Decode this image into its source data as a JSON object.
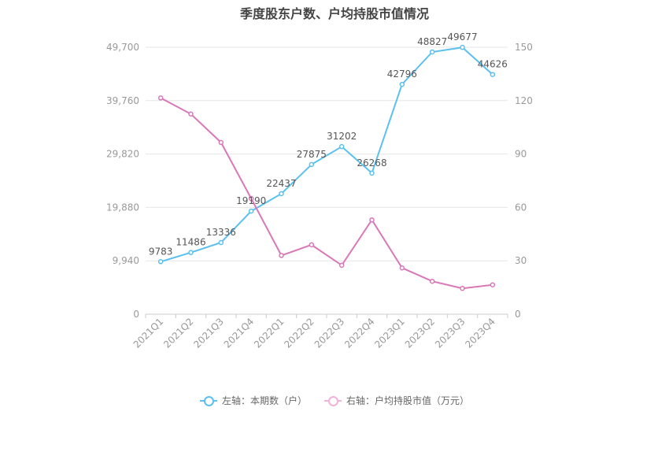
{
  "chart_data": {
    "type": "line",
    "title": "季度股东户数、户均持股市值情况",
    "categories": [
      "2021Q1",
      "2021Q2",
      "2021Q3",
      "2021Q4",
      "2022Q1",
      "2022Q2",
      "2022Q3",
      "2022Q4",
      "2023Q1",
      "2023Q2",
      "2023Q3",
      "2023Q4"
    ],
    "left_axis": {
      "ylim": [
        0,
        49700
      ],
      "ticks": [
        "0",
        "9,940",
        "19,880",
        "29,820",
        "39,760",
        "49,700"
      ]
    },
    "right_axis": {
      "ylim": [
        0,
        150
      ],
      "ticks": [
        "0",
        "30",
        "60",
        "90",
        "120",
        "150"
      ]
    },
    "series": [
      {
        "name": "左轴：本期数（户）",
        "axis": "left",
        "color": "#5bc0f0",
        "values": [
          9783,
          11486,
          13336,
          19190,
          22437,
          27875,
          31202,
          26268,
          42796,
          48827,
          49677,
          44626
        ],
        "labels": [
          "9783",
          "11486",
          "13336",
          "19190",
          "22437",
          "27875",
          "31202",
          "26268",
          "42796",
          "48827",
          "49677",
          "44626"
        ]
      },
      {
        "name": "右轴：户均持股市值（万元）",
        "axis": "right",
        "color": "#d977b8",
        "values": [
          121.5,
          112.5,
          96.5,
          65,
          33,
          39,
          27.5,
          53,
          26,
          18.5,
          14.5,
          16.5
        ]
      }
    ],
    "grid": true,
    "legend_position": "bottom"
  }
}
